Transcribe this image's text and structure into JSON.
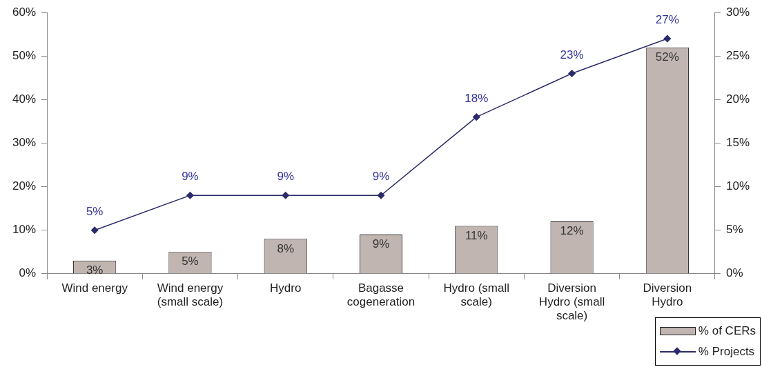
{
  "chart_data": {
    "type": "bar",
    "categories": [
      "Wind energy",
      "Wind energy (small scale)",
      "Hydro",
      "Bagasse cogeneration",
      "Hydro (small scale)",
      "Diversion Hydro (small scale)",
      "Diversion Hydro"
    ],
    "series": [
      {
        "name": "% of CERs",
        "color": "#c0b5b1",
        "values": [
          3,
          5,
          8,
          9,
          11,
          12,
          52
        ],
        "value_labels": [
          "3%",
          "5%",
          "8%",
          "9%",
          "11%",
          "12%",
          "52%"
        ]
      },
      {
        "name": "% Projects",
        "type": "line",
        "axis": "y2",
        "color": "#2b2b6b",
        "marker": "diamond",
        "values": [
          5,
          9,
          9,
          9,
          18,
          23,
          27
        ],
        "value_labels": [
          "5%",
          "9%",
          "9%",
          "9%",
          "18%",
          "23%",
          "27%"
        ]
      }
    ],
    "ylim": [
      0,
      60
    ],
    "yticks": [
      {
        "value": 0,
        "label": "0%"
      },
      {
        "value": 10,
        "label": "10%"
      },
      {
        "value": 20,
        "label": "20%"
      },
      {
        "value": 30,
        "label": "30%"
      },
      {
        "value": 40,
        "label": "40%"
      },
      {
        "value": 50,
        "label": "50%"
      },
      {
        "value": 60,
        "label": "60%"
      }
    ],
    "y2lim": [
      0,
      30
    ],
    "y2ticks": [
      {
        "value": 0,
        "label": "0%"
      },
      {
        "value": 5,
        "label": "5%"
      },
      {
        "value": 10,
        "label": "10%"
      },
      {
        "value": 15,
        "label": "15%"
      },
      {
        "value": 20,
        "label": "20%"
      },
      {
        "value": 25,
        "label": "25%"
      },
      {
        "value": 30,
        "label": "30%"
      }
    ],
    "grid": false,
    "legend": "bottom right"
  }
}
